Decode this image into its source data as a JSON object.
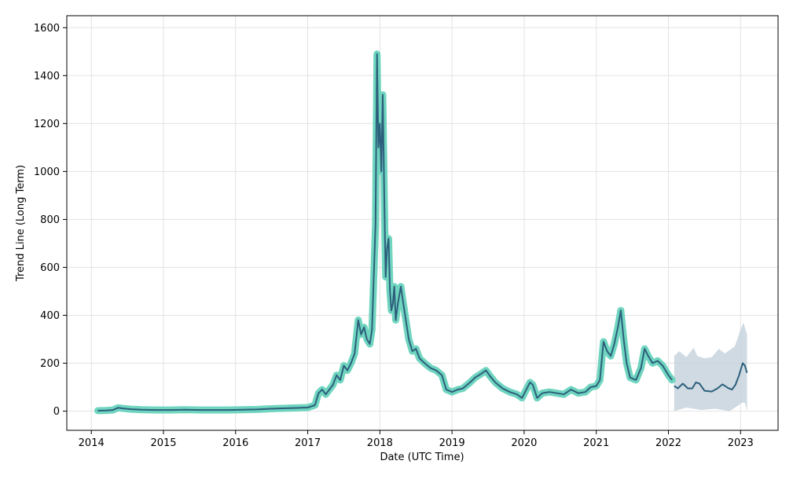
{
  "chart_data": {
    "type": "line",
    "title": "",
    "xlabel": "Date (UTC Time)",
    "ylabel": "Trend Line (Long Term)",
    "xlim": [
      2013.66,
      2023.52
    ],
    "ylim": [
      -80,
      1650
    ],
    "grid": true,
    "x_ticks": [
      {
        "value": 2014,
        "label": "2014"
      },
      {
        "value": 2015,
        "label": "2015"
      },
      {
        "value": 2016,
        "label": "2016"
      },
      {
        "value": 2017,
        "label": "2017"
      },
      {
        "value": 2018,
        "label": "2018"
      },
      {
        "value": 2019,
        "label": "2019"
      },
      {
        "value": 2020,
        "label": "2020"
      },
      {
        "value": 2021,
        "label": "2021"
      },
      {
        "value": 2022,
        "label": "2022"
      },
      {
        "value": 2023,
        "label": "2023"
      }
    ],
    "y_ticks": [
      {
        "value": 0,
        "label": "0"
      },
      {
        "value": 200,
        "label": "200"
      },
      {
        "value": 400,
        "label": "400"
      },
      {
        "value": 600,
        "label": "600"
      },
      {
        "value": 800,
        "label": "800"
      },
      {
        "value": 1000,
        "label": "1000"
      },
      {
        "value": 1200,
        "label": "1200"
      },
      {
        "value": 1400,
        "label": "1400"
      },
      {
        "value": 1600,
        "label": "1600"
      }
    ],
    "colors": {
      "history_band": "#5fd0b8",
      "line": "#2d5f7c",
      "forecast_band": "#c3d1dc"
    },
    "history": [
      [
        2014.09,
        2
      ],
      [
        2014.2,
        3
      ],
      [
        2014.3,
        5
      ],
      [
        2014.37,
        14
      ],
      [
        2014.45,
        11
      ],
      [
        2014.55,
        8
      ],
      [
        2014.7,
        6
      ],
      [
        2014.9,
        5
      ],
      [
        2015.1,
        5
      ],
      [
        2015.3,
        6
      ],
      [
        2015.5,
        5
      ],
      [
        2015.7,
        5
      ],
      [
        2015.9,
        5
      ],
      [
        2016.1,
        6
      ],
      [
        2016.3,
        7
      ],
      [
        2016.5,
        10
      ],
      [
        2016.7,
        12
      ],
      [
        2016.9,
        14
      ],
      [
        2017.0,
        15
      ],
      [
        2017.1,
        25
      ],
      [
        2017.15,
        75
      ],
      [
        2017.2,
        90
      ],
      [
        2017.25,
        70
      ],
      [
        2017.35,
        110
      ],
      [
        2017.4,
        150
      ],
      [
        2017.45,
        130
      ],
      [
        2017.5,
        190
      ],
      [
        2017.55,
        170
      ],
      [
        2017.6,
        200
      ],
      [
        2017.65,
        240
      ],
      [
        2017.7,
        380
      ],
      [
        2017.74,
        320
      ],
      [
        2017.78,
        350
      ],
      [
        2017.82,
        300
      ],
      [
        2017.86,
        280
      ],
      [
        2017.89,
        340
      ],
      [
        2017.92,
        600
      ],
      [
        2017.94,
        780
      ],
      [
        2017.96,
        1490
      ],
      [
        2017.98,
        1100
      ],
      [
        2018.0,
        1200
      ],
      [
        2018.02,
        1000
      ],
      [
        2018.04,
        1320
      ],
      [
        2018.06,
        900
      ],
      [
        2018.08,
        560
      ],
      [
        2018.1,
        680
      ],
      [
        2018.12,
        720
      ],
      [
        2018.14,
        500
      ],
      [
        2018.16,
        420
      ],
      [
        2018.18,
        450
      ],
      [
        2018.2,
        520
      ],
      [
        2018.22,
        380
      ],
      [
        2018.25,
        450
      ],
      [
        2018.29,
        520
      ],
      [
        2018.32,
        460
      ],
      [
        2018.36,
        380
      ],
      [
        2018.4,
        300
      ],
      [
        2018.45,
        250
      ],
      [
        2018.5,
        260
      ],
      [
        2018.55,
        220
      ],
      [
        2018.62,
        200
      ],
      [
        2018.7,
        180
      ],
      [
        2018.78,
        170
      ],
      [
        2018.86,
        150
      ],
      [
        2018.92,
        90
      ],
      [
        2019.0,
        80
      ],
      [
        2019.08,
        90
      ],
      [
        2019.15,
        95
      ],
      [
        2019.25,
        120
      ],
      [
        2019.32,
        140
      ],
      [
        2019.4,
        155
      ],
      [
        2019.47,
        170
      ],
      [
        2019.53,
        145
      ],
      [
        2019.6,
        120
      ],
      [
        2019.7,
        95
      ],
      [
        2019.8,
        80
      ],
      [
        2019.9,
        70
      ],
      [
        2019.97,
        55
      ],
      [
        2020.03,
        90
      ],
      [
        2020.08,
        120
      ],
      [
        2020.12,
        110
      ],
      [
        2020.18,
        55
      ],
      [
        2020.25,
        75
      ],
      [
        2020.35,
        80
      ],
      [
        2020.45,
        75
      ],
      [
        2020.55,
        70
      ],
      [
        2020.65,
        90
      ],
      [
        2020.75,
        75
      ],
      [
        2020.85,
        80
      ],
      [
        2020.92,
        100
      ],
      [
        2021.0,
        105
      ],
      [
        2021.05,
        130
      ],
      [
        2021.1,
        290
      ],
      [
        2021.15,
        250
      ],
      [
        2021.2,
        230
      ],
      [
        2021.25,
        280
      ],
      [
        2021.3,
        350
      ],
      [
        2021.34,
        420
      ],
      [
        2021.38,
        300
      ],
      [
        2021.42,
        200
      ],
      [
        2021.47,
        140
      ],
      [
        2021.55,
        130
      ],
      [
        2021.62,
        180
      ],
      [
        2021.67,
        260
      ],
      [
        2021.72,
        230
      ],
      [
        2021.78,
        200
      ],
      [
        2021.85,
        210
      ],
      [
        2021.92,
        190
      ],
      [
        2022.0,
        150
      ],
      [
        2022.05,
        130
      ]
    ],
    "forecast": [
      [
        2022.08,
        105
      ],
      [
        2022.13,
        95
      ],
      [
        2022.2,
        115
      ],
      [
        2022.27,
        95
      ],
      [
        2022.33,
        95
      ],
      [
        2022.38,
        120
      ],
      [
        2022.43,
        115
      ],
      [
        2022.5,
        85
      ],
      [
        2022.6,
        82
      ],
      [
        2022.68,
        95
      ],
      [
        2022.75,
        112
      ],
      [
        2022.83,
        96
      ],
      [
        2022.88,
        90
      ],
      [
        2022.93,
        110
      ],
      [
        2022.98,
        150
      ],
      [
        2023.03,
        200
      ],
      [
        2023.06,
        190
      ],
      [
        2023.09,
        160
      ]
    ],
    "forecast_band_upper": [
      [
        2022.08,
        230
      ],
      [
        2022.15,
        250
      ],
      [
        2022.25,
        225
      ],
      [
        2022.35,
        265
      ],
      [
        2022.4,
        230
      ],
      [
        2022.5,
        220
      ],
      [
        2022.6,
        225
      ],
      [
        2022.7,
        260
      ],
      [
        2022.78,
        240
      ],
      [
        2022.85,
        255
      ],
      [
        2022.92,
        270
      ],
      [
        2023.0,
        340
      ],
      [
        2023.04,
        370
      ],
      [
        2023.09,
        320
      ]
    ],
    "forecast_band_lower": [
      [
        2022.08,
        0
      ],
      [
        2022.25,
        15
      ],
      [
        2022.45,
        5
      ],
      [
        2022.65,
        10
      ],
      [
        2022.85,
        0
      ],
      [
        2023.02,
        35
      ],
      [
        2023.06,
        35
      ],
      [
        2023.09,
        0
      ]
    ]
  }
}
